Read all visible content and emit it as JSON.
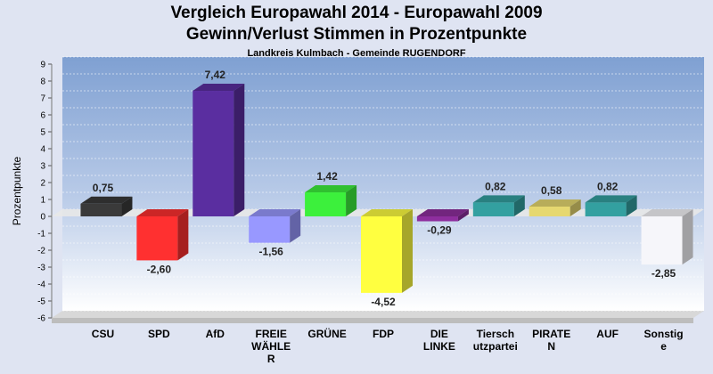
{
  "chart_data": {
    "type": "bar",
    "title": "Vergleich Europawahl 2014 - Europawahl 2009",
    "subtitle_line": "Gewinn/Verlust Stimmen in Prozentpunkte",
    "caption": "Landkreis Kulmbach - Gemeinde RUGENDORF",
    "ylabel": "Prozentpunkte",
    "xlabel": "",
    "ylim": [
      -6,
      9
    ],
    "yticks": [
      "-6",
      "-5",
      "-4",
      "-3",
      "-2",
      "-1",
      "0",
      "1",
      "2",
      "3",
      "4",
      "5",
      "6",
      "7",
      "8",
      "9"
    ],
    "grid": true,
    "categories": [
      [
        "CSU"
      ],
      [
        "SPD"
      ],
      [
        "AfD"
      ],
      [
        "FREIE",
        "WÄHLE",
        "R"
      ],
      [
        "GRÜNE"
      ],
      [
        "FDP"
      ],
      [
        "DIE",
        "LINKE"
      ],
      [
        "Tiersch",
        "utzpartei"
      ],
      [
        "PIRATE",
        "N"
      ],
      [
        "AUF"
      ],
      [
        "Sonstig",
        "e"
      ]
    ],
    "values": [
      0.75,
      -2.6,
      7.42,
      -1.56,
      1.42,
      -4.52,
      -0.29,
      0.82,
      0.58,
      0.82,
      -2.85
    ],
    "value_labels": [
      "0,75",
      "-2,60",
      "7,42",
      "-1,56",
      "1,42",
      "-4,52",
      "-0,29",
      "0,82",
      "0,58",
      "0,82",
      "-2,85"
    ],
    "colors": [
      "#3a3a3a",
      "#ff3030",
      "#5a2ea0",
      "#9898ff",
      "#3cf03c",
      "#ffff40",
      "#8e2e9e",
      "#33a0a0",
      "#e6d870",
      "#33a0a0",
      "#f6f6fa"
    ]
  }
}
